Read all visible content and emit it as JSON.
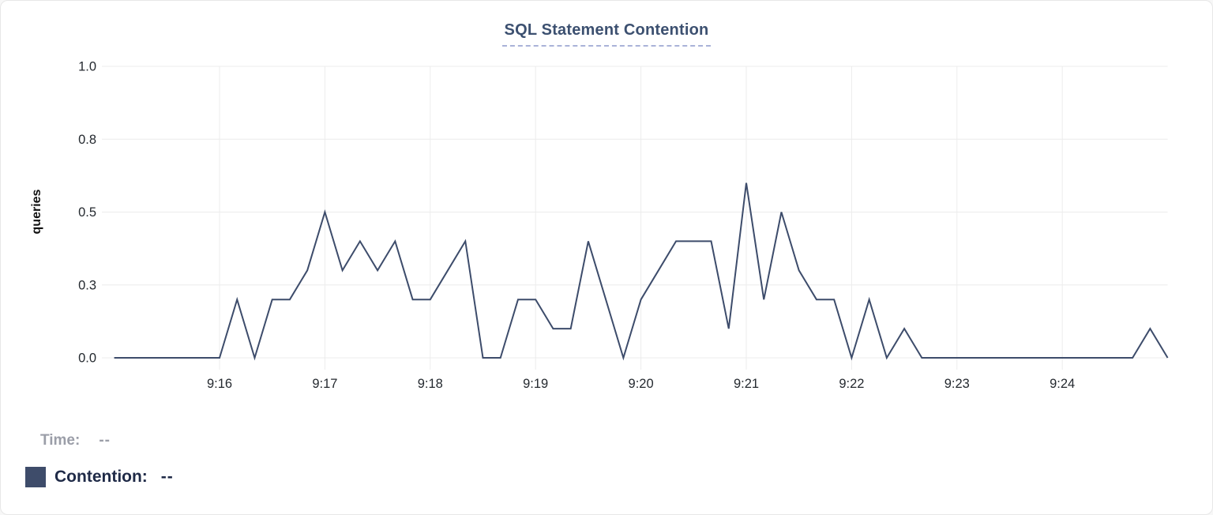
{
  "card": {
    "title": "SQL Statement Contention"
  },
  "chart_data": {
    "type": "line",
    "title": "SQL Statement Contention",
    "xlabel": "",
    "ylabel": "queries",
    "ylim": [
      0,
      1.0
    ],
    "grid": true,
    "legend_position": "bottom-left",
    "y_ticks": [
      {
        "value": 1.0,
        "label": "1.0"
      },
      {
        "value": 0.75,
        "label": "0.8"
      },
      {
        "value": 0.5,
        "label": "0.5"
      },
      {
        "value": 0.25,
        "label": "0.3"
      },
      {
        "value": 0.0,
        "label": "0.0"
      }
    ],
    "x_tick_labels": [
      "9:16",
      "9:17",
      "9:18",
      "9:19",
      "9:20",
      "9:21",
      "9:22",
      "9:23",
      "9:24"
    ],
    "x": [
      "9:15:00",
      "9:15:10",
      "9:15:20",
      "9:15:30",
      "9:15:40",
      "9:15:50",
      "9:16:00",
      "9:16:10",
      "9:16:20",
      "9:16:30",
      "9:16:40",
      "9:16:50",
      "9:17:00",
      "9:17:10",
      "9:17:20",
      "9:17:30",
      "9:17:40",
      "9:17:50",
      "9:18:00",
      "9:18:10",
      "9:18:20",
      "9:18:30",
      "9:18:40",
      "9:18:50",
      "9:19:00",
      "9:19:10",
      "9:19:20",
      "9:19:30",
      "9:19:40",
      "9:19:50",
      "9:20:00",
      "9:20:10",
      "9:20:20",
      "9:20:30",
      "9:20:40",
      "9:20:50",
      "9:21:00",
      "9:21:10",
      "9:21:20",
      "9:21:30",
      "9:21:40",
      "9:21:50",
      "9:22:00",
      "9:22:10",
      "9:22:20",
      "9:22:30",
      "9:22:40",
      "9:22:50",
      "9:23:00",
      "9:23:10",
      "9:23:20",
      "9:23:30",
      "9:23:40",
      "9:23:50",
      "9:24:00",
      "9:24:10",
      "9:24:20",
      "9:24:30",
      "9:24:40",
      "9:24:50",
      "9:25:00"
    ],
    "series": [
      {
        "name": "Contention",
        "values": [
          0,
          0,
          0,
          0,
          0,
          0,
          0,
          0.2,
          0,
          0.2,
          0.2,
          0.3,
          0.5,
          0.3,
          0.4,
          0.3,
          0.4,
          0.2,
          0.2,
          0.3,
          0.4,
          0,
          0,
          0.2,
          0.2,
          0.1,
          0.1,
          0.4,
          0.2,
          0,
          0.2,
          0.3,
          0.4,
          0.4,
          0.4,
          0.1,
          0.6,
          0.2,
          0.5,
          0.3,
          0.2,
          0.2,
          0,
          0.2,
          0,
          0.1,
          0,
          0,
          0,
          0,
          0,
          0,
          0,
          0,
          0,
          0,
          0,
          0,
          0,
          0.1,
          0
        ]
      }
    ]
  },
  "footer": {
    "time_label": "Time:",
    "time_value": "--",
    "contention_label": "Contention:",
    "contention_value": "--"
  },
  "colors": {
    "line": "#3d4c6b",
    "swatch": "#3e4c6a",
    "grid": "#ececec",
    "axis_text": "#24292f",
    "title": "#3c5070",
    "title_underline": "#a9b2d8",
    "time_text": "#9b9ea8",
    "contention_text": "#1f2a47"
  }
}
